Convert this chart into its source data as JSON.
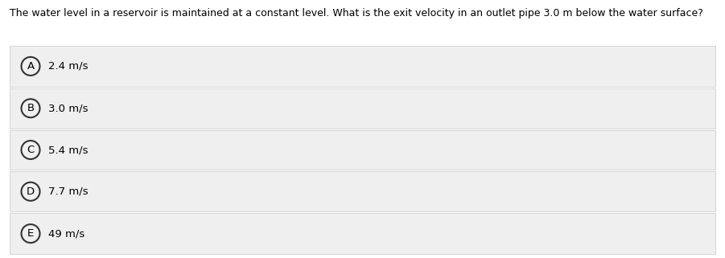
{
  "question": "The water level in a reservoir is maintained at a constant level. What is the exit velocity in an outlet pipe 3.0 m below the water surface?",
  "options": [
    {
      "label": "A",
      "text": "2.4 m/s"
    },
    {
      "label": "B",
      "text": "3.0 m/s"
    },
    {
      "label": "C",
      "text": "5.4 m/s"
    },
    {
      "label": "D",
      "text": "7.7 m/s"
    },
    {
      "label": "E",
      "text": "49 m/s"
    }
  ],
  "bg_color": "#ffffff",
  "option_bg_color": "#efefef",
  "option_border_color": "#d0d0d0",
  "text_color": "#000000",
  "circle_edge_color": "#333333",
  "question_fontsize": 9.0,
  "option_fontsize": 9.5,
  "label_fontsize": 9.5,
  "fig_width": 9.01,
  "fig_height": 3.21,
  "dpi": 100
}
